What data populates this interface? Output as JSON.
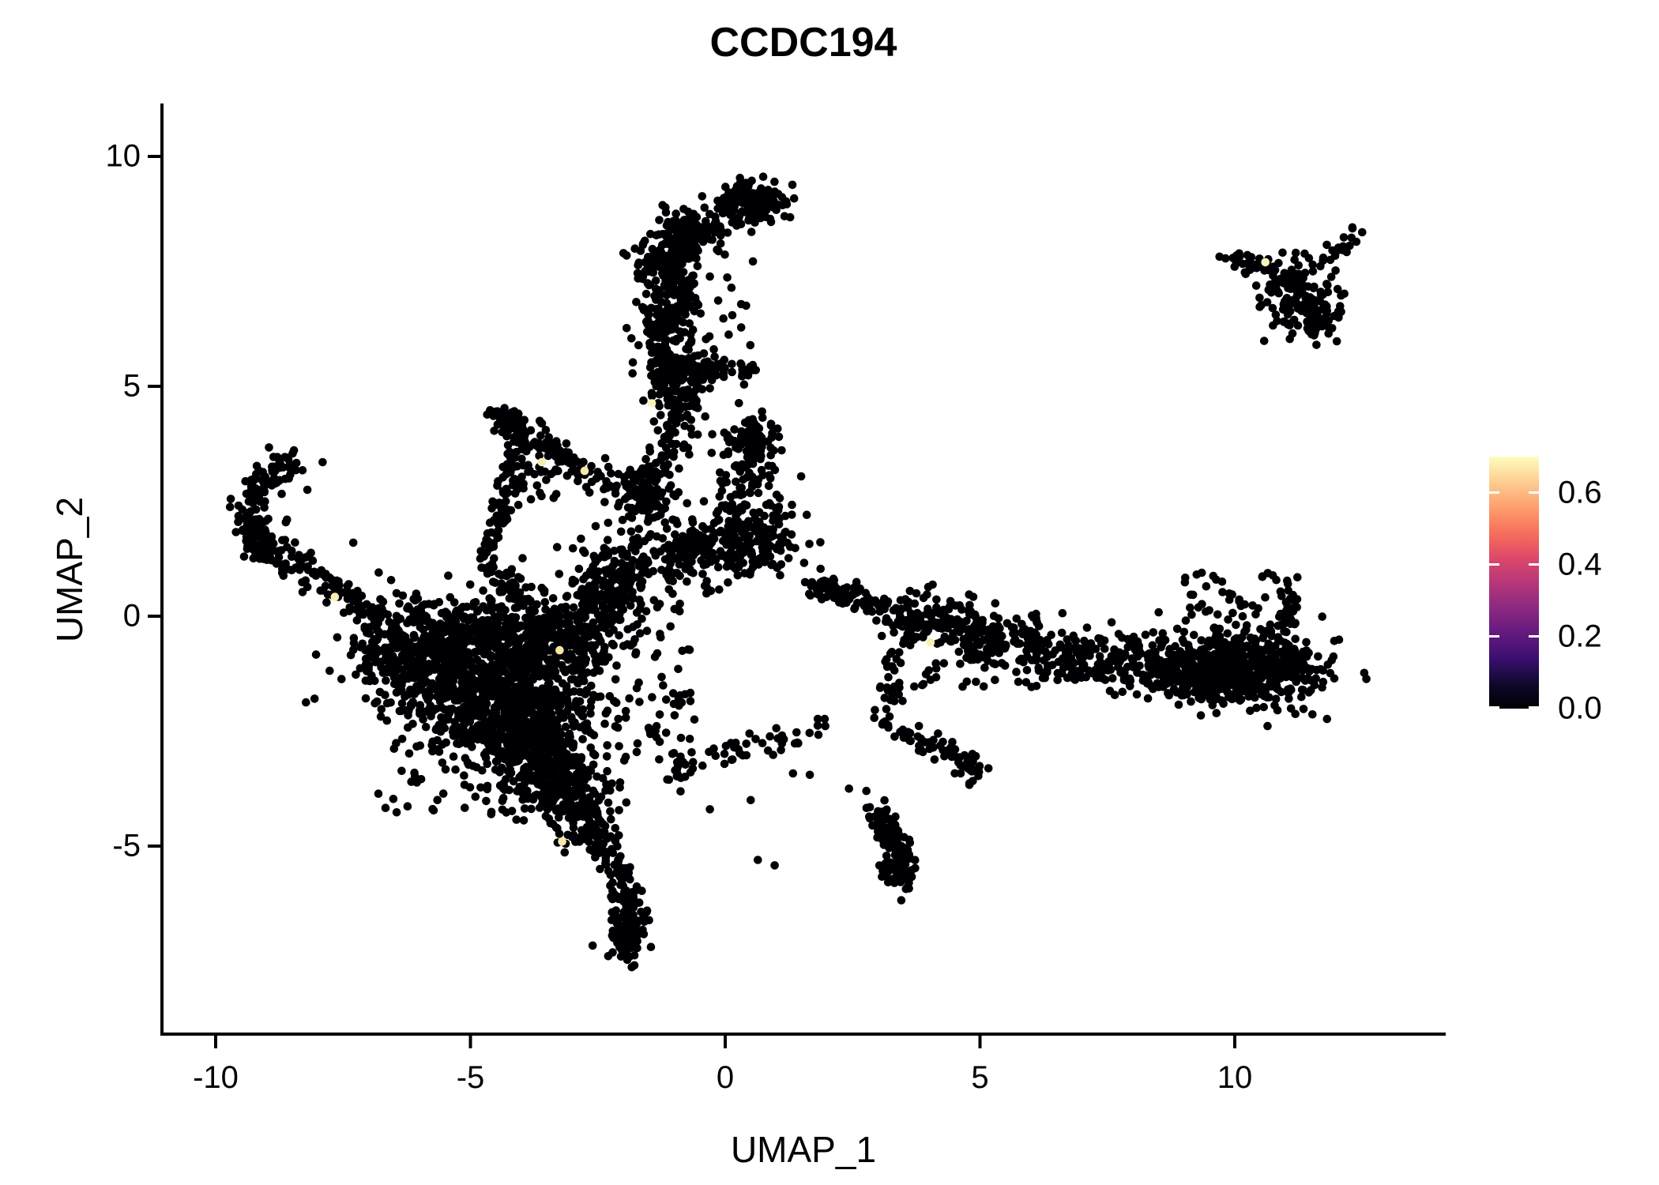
{
  "title": "CCDC194",
  "axes": {
    "x": {
      "label": "UMAP_1",
      "ticks": [
        {
          "label": "-10",
          "value": -10
        },
        {
          "label": "-5",
          "value": -5
        },
        {
          "label": "0",
          "value": 0
        },
        {
          "label": "5",
          "value": 5
        },
        {
          "label": "10",
          "value": 10
        }
      ]
    },
    "y": {
      "label": "UMAP_2",
      "ticks": [
        {
          "label": "10",
          "value": 10
        },
        {
          "label": "5",
          "value": 5
        },
        {
          "label": "0",
          "value": 0
        },
        {
          "label": "-5",
          "value": -5
        }
      ]
    }
  },
  "legend": {
    "max_value": 0.7,
    "ticks": [
      {
        "label": "0.6",
        "value": 0.6
      },
      {
        "label": "0.4",
        "value": 0.4
      },
      {
        "label": "0.2",
        "value": 0.2
      },
      {
        "label": "0.0",
        "value": 0.0
      }
    ],
    "gradient_stops": [
      "#000004",
      "#10092d",
      "#3b0f70",
      "#641a80",
      "#8c2981",
      "#b73779",
      "#de4968",
      "#f7705c",
      "#fe9f6d",
      "#fcce91",
      "#fcfdbf"
    ]
  },
  "chart_data": {
    "type": "scatter",
    "title": "CCDC194",
    "xlabel": "UMAP_1",
    "ylabel": "UMAP_2",
    "xlim": [
      -11.05,
      14.1
    ],
    "ylim": [
      -9.1,
      11.1
    ],
    "grid": false,
    "legend_position": "right",
    "point_color": "#000004",
    "point_radius_px": 5.3,
    "n_points_approx": 6600,
    "clusters": [
      {
        "name": "top-blob",
        "type": "blob",
        "cx": 0.55,
        "cy": 9.0,
        "sx": 0.33,
        "sy": 0.26,
        "n": 140
      },
      {
        "name": "top-blob-west",
        "type": "streak",
        "path": [
          [
            0.0,
            8.85
          ],
          [
            0.45,
            9.05
          ]
        ],
        "sigma": 0.12,
        "n": 25
      },
      {
        "name": "top-band",
        "type": "streak",
        "path": [
          [
            -0.6,
            8.6
          ],
          [
            -1.05,
            8.2
          ],
          [
            -1.2,
            7.6
          ],
          [
            -0.95,
            7.0
          ],
          [
            -1.1,
            6.5
          ],
          [
            -1.25,
            6.0
          ],
          [
            -1.1,
            5.5
          ],
          [
            -1.0,
            5.0
          ],
          [
            -0.8,
            4.55
          ]
        ],
        "sigma": 0.27,
        "n": 450
      },
      {
        "name": "top-band-crown",
        "type": "blob",
        "cx": -0.68,
        "cy": 8.3,
        "sx": 0.3,
        "sy": 0.26,
        "n": 85
      },
      {
        "name": "band-offshoot",
        "type": "blob",
        "cx": -0.45,
        "cy": 5.3,
        "sx": 0.25,
        "sy": 0.2,
        "n": 40
      },
      {
        "name": "band-offshoot-east",
        "type": "streak",
        "path": [
          [
            -0.25,
            5.35
          ],
          [
            0.6,
            5.35
          ]
        ],
        "sigma": 0.14,
        "n": 30
      },
      {
        "name": "band-halo-east",
        "type": "scatter",
        "x0": -0.35,
        "x1": 0.55,
        "y0": 5.8,
        "y1": 8.8,
        "n": 22
      },
      {
        "name": "band-halo-west",
        "type": "scatter",
        "x0": -2.0,
        "x1": -1.45,
        "y0": 5.0,
        "y1": 8.0,
        "n": 16
      },
      {
        "name": "band-lower",
        "type": "streak",
        "path": [
          [
            -0.85,
            4.5
          ],
          [
            -1.1,
            3.9
          ],
          [
            -1.3,
            3.3
          ],
          [
            -1.5,
            2.6
          ],
          [
            -1.6,
            2.0
          ]
        ],
        "sigma": 0.3,
        "n": 140
      },
      {
        "name": "band-to-wishbone",
        "type": "streak",
        "path": [
          [
            -2.35,
            2.9
          ],
          [
            -1.75,
            2.6
          ],
          [
            -1.2,
            2.4
          ]
        ],
        "sigma": 0.2,
        "n": 50
      },
      {
        "name": "patch-upper",
        "type": "blob",
        "cx": 0.5,
        "cy": 3.75,
        "sx": 0.3,
        "sy": 0.35,
        "n": 100
      },
      {
        "name": "patch-lower",
        "type": "blob",
        "cx": 0.4,
        "cy": 1.75,
        "sx": 0.55,
        "sy": 0.4,
        "n": 180
      },
      {
        "name": "patch-lower-west",
        "type": "blob",
        "cx": -0.6,
        "cy": 1.4,
        "sx": 0.45,
        "sy": 0.45,
        "n": 110
      },
      {
        "name": "patch-between",
        "type": "scatter",
        "x0": -0.2,
        "x1": 1.1,
        "y0": 2.4,
        "y1": 3.2,
        "n": 35
      },
      {
        "name": "wishbone-vertex",
        "type": "blob",
        "cx": -4.3,
        "cy": 4.3,
        "sx": 0.18,
        "sy": 0.15,
        "n": 40
      },
      {
        "name": "wishbone-left-edge",
        "type": "streak",
        "path": [
          [
            -4.3,
            4.35
          ],
          [
            -4.05,
            3.6
          ],
          [
            -4.25,
            2.8
          ],
          [
            -4.5,
            2.0
          ],
          [
            -4.62,
            1.25
          ]
        ],
        "sigma": 0.13,
        "n": 110
      },
      {
        "name": "wishbone-right-edge",
        "type": "streak",
        "path": [
          [
            -4.15,
            4.25
          ],
          [
            -3.55,
            3.75
          ],
          [
            -3.0,
            3.3
          ],
          [
            -2.45,
            2.95
          ]
        ],
        "sigma": 0.13,
        "n": 75
      },
      {
        "name": "wishbone-inner",
        "type": "scatter",
        "x0": -4.25,
        "x1": -3.1,
        "y0": 2.5,
        "y1": 3.7,
        "n": 40
      },
      {
        "name": "wishbone-tail",
        "type": "streak",
        "path": [
          [
            -4.55,
            1.2
          ],
          [
            -4.2,
            0.7
          ],
          [
            -3.95,
            0.3
          ]
        ],
        "sigma": 0.15,
        "n": 45
      },
      {
        "name": "left-hook",
        "type": "streak",
        "path": [
          [
            -8.5,
            3.4
          ],
          [
            -9.0,
            3.1
          ],
          [
            -9.3,
            2.5
          ],
          [
            -9.3,
            1.85
          ],
          [
            -9.05,
            1.45
          ],
          [
            -8.6,
            1.2
          ],
          [
            -8.1,
            1.0
          ],
          [
            -7.6,
            0.6
          ],
          [
            -7.15,
            0.2
          ],
          [
            -6.8,
            -0.1
          ]
        ],
        "sigma": 0.17,
        "n": 240
      },
      {
        "name": "hook-clump",
        "type": "blob",
        "cx": -9.1,
        "cy": 1.5,
        "sx": 0.18,
        "sy": 0.18,
        "n": 45
      },
      {
        "name": "hook-outliers",
        "type": "points",
        "pts": [
          [
            -8.2,
            2.75
          ],
          [
            -8.6,
            2.1
          ],
          [
            -6.8,
            0.95
          ],
          [
            -7.3,
            1.6
          ],
          [
            -7.9,
            3.35
          ],
          [
            -6.45,
            0.5
          ]
        ]
      },
      {
        "name": "mass-core-upper",
        "type": "blob",
        "cx": -5.1,
        "cy": -1.3,
        "sx": 0.85,
        "sy": 0.75,
        "n": 600
      },
      {
        "name": "mass-core-mid",
        "type": "blob",
        "cx": -4.1,
        "cy": -2.3,
        "sx": 0.75,
        "sy": 0.7,
        "n": 500
      },
      {
        "name": "mass-core-lower",
        "type": "blob",
        "cx": -3.5,
        "cy": -3.3,
        "sx": 0.5,
        "sy": 0.55,
        "n": 250
      },
      {
        "name": "mass-top-edge",
        "type": "blob",
        "cx": -4.6,
        "cy": -0.35,
        "sx": 1.1,
        "sy": 0.4,
        "n": 280
      },
      {
        "name": "mass-west-tip",
        "type": "blob",
        "cx": -6.3,
        "cy": -0.75,
        "sx": 0.45,
        "sy": 0.5,
        "n": 140
      },
      {
        "name": "mass-east-edge",
        "type": "blob",
        "cx": -3.3,
        "cy": -0.6,
        "sx": 0.5,
        "sy": 0.5,
        "n": 180
      },
      {
        "name": "mass-taper",
        "type": "blob",
        "cx": -2.95,
        "cy": -4.2,
        "sx": 0.35,
        "sy": 0.4,
        "n": 110
      },
      {
        "name": "mass-halo",
        "type": "scatter",
        "x0": -6.9,
        "x1": -2.3,
        "y0": -4.4,
        "y1": 0.4,
        "n": 100
      },
      {
        "name": "neck",
        "type": "blob",
        "cx": -2.3,
        "cy": 0.6,
        "sx": 0.5,
        "sy": 0.55,
        "n": 170
      },
      {
        "name": "neck-streak",
        "type": "streak",
        "path": [
          [
            -2.9,
            -0.2
          ],
          [
            -2.2,
            0.5
          ],
          [
            -1.8,
            1.2
          ],
          [
            -1.6,
            1.9
          ]
        ],
        "sigma": 0.28,
        "n": 100
      },
      {
        "name": "east-of-mass-sparse",
        "type": "scatter",
        "x0": -2.4,
        "x1": -0.6,
        "y0": -3.2,
        "y1": -0.3,
        "n": 65
      },
      {
        "name": "spike",
        "type": "streak",
        "path": [
          [
            -2.6,
            -4.5
          ],
          [
            -2.3,
            -5.1
          ],
          [
            -2.05,
            -5.7
          ],
          [
            -1.9,
            -6.3
          ],
          [
            -1.85,
            -6.9
          ],
          [
            -1.95,
            -7.4
          ]
        ],
        "sigma": 0.16,
        "n": 170
      },
      {
        "name": "spike-foot",
        "type": "blob",
        "cx": -1.9,
        "cy": -7.0,
        "sx": 0.2,
        "sy": 0.28,
        "n": 60
      },
      {
        "name": "arc-chain",
        "type": "streak",
        "path": [
          [
            -1.15,
            -3.6
          ],
          [
            -0.5,
            -3.1
          ],
          [
            0.2,
            -2.85
          ],
          [
            0.9,
            -2.75
          ],
          [
            1.55,
            -2.6
          ],
          [
            2.15,
            -2.2
          ]
        ],
        "sigma": 0.13,
        "n": 55
      },
      {
        "name": "arc-pair",
        "type": "points",
        "pts": [
          [
            0.64,
            -5.3
          ],
          [
            0.97,
            -5.42
          ]
        ]
      },
      {
        "name": "arc-strays",
        "type": "points",
        "pts": [
          [
            1.33,
            -3.42
          ],
          [
            1.66,
            -3.45
          ],
          [
            2.43,
            -3.75
          ],
          [
            2.77,
            -3.8
          ],
          [
            -0.3,
            -4.2
          ],
          [
            0.5,
            -4.0
          ]
        ]
      },
      {
        "name": "right-chain",
        "type": "streak",
        "path": [
          [
            1.7,
            0.72
          ],
          [
            2.2,
            0.5
          ],
          [
            2.7,
            0.35
          ],
          [
            3.1,
            0.15
          ]
        ],
        "sigma": 0.14,
        "n": 60
      },
      {
        "name": "right-chain-clump",
        "type": "blob",
        "cx": 2.0,
        "cy": 0.55,
        "sx": 0.2,
        "sy": 0.15,
        "n": 30
      },
      {
        "name": "right-band",
        "type": "streak",
        "path": [
          [
            3.3,
            0.1
          ],
          [
            4.0,
            -0.15
          ],
          [
            4.8,
            -0.3
          ],
          [
            5.6,
            -0.5
          ],
          [
            6.4,
            -0.7
          ],
          [
            7.2,
            -0.85
          ],
          [
            8.0,
            -1.0
          ],
          [
            8.8,
            -1.1
          ],
          [
            9.6,
            -1.2
          ],
          [
            10.4,
            -1.15
          ],
          [
            11.1,
            -1.0
          ]
        ],
        "sigma": 0.3,
        "n": 600
      },
      {
        "name": "right-band-east-mass",
        "type": "blob",
        "cx": 10.2,
        "cy": -1.05,
        "sx": 0.85,
        "sy": 0.45,
        "n": 350
      },
      {
        "name": "right-band-east-south",
        "type": "blob",
        "cx": 9.6,
        "cy": -1.4,
        "sx": 0.7,
        "sy": 0.28,
        "n": 130
      },
      {
        "name": "right-band-north-sparse",
        "type": "scatter",
        "x0": 8.8,
        "x1": 11.35,
        "y0": 0.0,
        "y1": 0.95,
        "n": 40
      },
      {
        "name": "right-wisp",
        "type": "streak",
        "path": [
          [
            11.05,
            0.55
          ],
          [
            11.0,
            0.0
          ],
          [
            11.1,
            -0.5
          ]
        ],
        "sigma": 0.1,
        "n": 26
      },
      {
        "name": "band-ring",
        "type": "ring",
        "cx": 5.05,
        "cy": -0.6,
        "r": 0.33,
        "sigma": 0.05,
        "n": 38
      },
      {
        "name": "band-south-sparse",
        "type": "scatter",
        "x0": 3.6,
        "x1": 8.6,
        "y0": -1.55,
        "y1": -0.95,
        "n": 55
      },
      {
        "name": "band-north-strays",
        "type": "points",
        "pts": [
          [
            5.3,
            0.28
          ],
          [
            6.1,
            0.05
          ],
          [
            7.1,
            -0.25
          ],
          [
            4.4,
            0.2
          ],
          [
            7.9,
            -0.5
          ],
          [
            8.4,
            -0.35
          ]
        ]
      },
      {
        "name": "dangle",
        "type": "streak",
        "path": [
          [
            3.35,
            -0.7
          ],
          [
            3.2,
            -1.25
          ],
          [
            3.3,
            -1.8
          ],
          [
            3.1,
            -2.35
          ],
          [
            3.55,
            -2.6
          ],
          [
            4.0,
            -2.78
          ],
          [
            4.5,
            -2.95
          ],
          [
            4.8,
            -3.2
          ]
        ],
        "sigma": 0.12,
        "n": 85
      },
      {
        "name": "dangle-end-clump",
        "type": "blob",
        "cx": 4.85,
        "cy": -3.3,
        "sx": 0.15,
        "sy": 0.15,
        "n": 22
      },
      {
        "name": "teardrop",
        "type": "streak",
        "path": [
          [
            3.1,
            -4.45
          ],
          [
            3.3,
            -4.9
          ],
          [
            3.45,
            -5.35
          ],
          [
            3.4,
            -5.75
          ]
        ],
        "sigma": 0.17,
        "n": 120
      },
      {
        "name": "teardrop-top",
        "type": "blob",
        "cx": 3.05,
        "cy": -4.4,
        "sx": 0.12,
        "sy": 0.18,
        "n": 22
      },
      {
        "name": "topright-core",
        "type": "blob",
        "cx": 11.1,
        "cy": 7.1,
        "sx": 0.45,
        "sy": 0.4,
        "n": 120
      },
      {
        "name": "topright-west-streak",
        "type": "streak",
        "path": [
          [
            9.85,
            7.75
          ],
          [
            10.35,
            7.7
          ],
          [
            10.8,
            7.55
          ]
        ],
        "sigma": 0.1,
        "n": 26
      },
      {
        "name": "topright-arm",
        "type": "streak",
        "path": [
          [
            11.6,
            7.6
          ],
          [
            12.0,
            7.95
          ],
          [
            12.35,
            8.3
          ]
        ],
        "sigma": 0.09,
        "n": 20
      },
      {
        "name": "topright-south-lump",
        "type": "blob",
        "cx": 11.65,
        "cy": 6.55,
        "sx": 0.2,
        "sy": 0.3,
        "n": 55
      },
      {
        "name": "topright-strays",
        "type": "points",
        "pts": [
          [
            9.7,
            7.82
          ],
          [
            12.5,
            8.35
          ]
        ]
      }
    ],
    "highlight_points": [
      {
        "x": -1.44,
        "y": 4.63,
        "value": 0.7,
        "color": "#f7f2b6"
      },
      {
        "x": -7.66,
        "y": 0.42,
        "value": 0.65,
        "color": "#f8eeb0"
      },
      {
        "x": -3.6,
        "y": 3.35,
        "value": 0.65,
        "color": "#f7edad"
      },
      {
        "x": -2.76,
        "y": 3.16,
        "value": 0.6,
        "color": "#f9e9a8"
      },
      {
        "x": 4.03,
        "y": -0.57,
        "value": 0.65,
        "color": "#f8f0b2"
      },
      {
        "x": 10.6,
        "y": 7.7,
        "value": 0.7,
        "color": "#f9f4bb"
      },
      {
        "x": -3.25,
        "y": -0.74,
        "value": 0.6,
        "color": "#f6e6a4"
      },
      {
        "x": -3.2,
        "y": -4.9,
        "value": 0.6,
        "color": "#f7eaa9"
      }
    ]
  }
}
